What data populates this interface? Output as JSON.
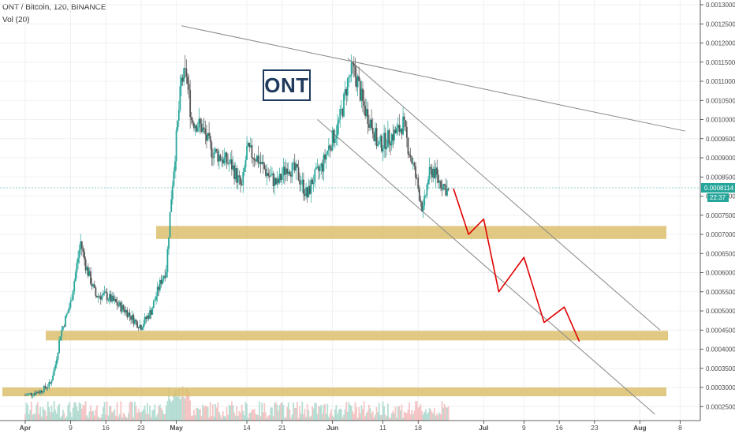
{
  "header": {
    "symbol_line": "ONT / Bitcoin, 120, BINANCE",
    "indicator": "Vol (20)"
  },
  "annotation": {
    "label": "ONT"
  },
  "price_tag": {
    "value": "0.0008114",
    "countdown": "22:37",
    "color": "#26a69a"
  },
  "colors": {
    "up": "#26a69a",
    "down": "#555555",
    "zone": "#dcbf6e",
    "trendline": "#888888",
    "projection": "#e00000",
    "volume": "#cfd8dc"
  },
  "chart_data": {
    "type": "candlestick",
    "title": "ONT / Bitcoin, 120, BINANCE",
    "ylim": [
      0.00023,
      0.0013
    ],
    "yticks": [
      "0.0013000",
      "0.0012500",
      "0.0012000",
      "0.0011500",
      "0.0011000",
      "0.0010500",
      "0.0010000",
      "0.0009500",
      "0.0009000",
      "0.0008500",
      "0.0008000",
      "0.0007500",
      "0.0007000",
      "0.0006500",
      "0.0006000",
      "0.0005500",
      "0.0005000",
      "0.0004500",
      "0.0004000",
      "0.0003500",
      "0.0003000",
      "0.0002500"
    ],
    "xticks": [
      "Apr",
      "9",
      "16",
      "23",
      "May",
      "14",
      "21",
      "Jun",
      "11",
      "18",
      "Jul",
      "9",
      "16",
      "23",
      "Aug",
      "8"
    ],
    "xtick_days": [
      0,
      9,
      16,
      23,
      30,
      44,
      51,
      61,
      71,
      78,
      91,
      99,
      106,
      113,
      122,
      130
    ],
    "price_path_day_value": [
      [
        0,
        0.00028
      ],
      [
        3,
        0.00029
      ],
      [
        5,
        0.00031
      ],
      [
        6,
        0.00036
      ],
      [
        7,
        0.00044
      ],
      [
        8,
        0.00048
      ],
      [
        9,
        0.00052
      ],
      [
        10,
        0.0006
      ],
      [
        11,
        0.00068
      ],
      [
        12,
        0.00062
      ],
      [
        13,
        0.00058
      ],
      [
        14,
        0.00054
      ],
      [
        16,
        0.00054
      ],
      [
        18,
        0.00052
      ],
      [
        20,
        0.0005
      ],
      [
        22,
        0.00047
      ],
      [
        23,
        0.00046
      ],
      [
        25,
        0.0005
      ],
      [
        26,
        0.00054
      ],
      [
        27,
        0.00058
      ],
      [
        28,
        0.00061
      ],
      [
        29,
        0.0008
      ],
      [
        30,
        0.00095
      ],
      [
        31,
        0.0011
      ],
      [
        32,
        0.00112
      ],
      [
        33,
        0.001
      ],
      [
        35,
        0.00098
      ],
      [
        37,
        0.00092
      ],
      [
        39,
        0.0009
      ],
      [
        41,
        0.00088
      ],
      [
        42,
        0.00085
      ],
      [
        43,
        0.00082
      ],
      [
        44,
        0.00092
      ],
      [
        46,
        0.0009
      ],
      [
        48,
        0.00086
      ],
      [
        50,
        0.00083
      ],
      [
        52,
        0.00088
      ],
      [
        54,
        0.00086
      ],
      [
        56,
        0.0008
      ],
      [
        57,
        0.00084
      ],
      [
        59,
        0.00088
      ],
      [
        60,
        0.00092
      ],
      [
        62,
        0.00098
      ],
      [
        63,
        0.00103
      ],
      [
        64,
        0.0011
      ],
      [
        65,
        0.00113
      ],
      [
        66,
        0.0011
      ],
      [
        67,
        0.00104
      ],
      [
        69,
        0.00098
      ],
      [
        70,
        0.00093
      ],
      [
        72,
        0.00095
      ],
      [
        74,
        0.00097
      ],
      [
        75,
        0.00099
      ],
      [
        76,
        0.00093
      ],
      [
        77,
        0.00088
      ],
      [
        78,
        0.00082
      ],
      [
        79,
        0.00076
      ],
      [
        80,
        0.00085
      ],
      [
        81,
        0.00087
      ],
      [
        82,
        0.00084
      ],
      [
        83,
        0.00083
      ],
      [
        84,
        0.00081
      ]
    ],
    "projection_day_value": [
      [
        85,
        0.00082
      ],
      [
        88,
        0.0007
      ],
      [
        91,
        0.00074
      ],
      [
        94,
        0.00055
      ],
      [
        99,
        0.00064
      ],
      [
        103,
        0.00047
      ],
      [
        107,
        0.00051
      ],
      [
        110,
        0.00042
      ]
    ],
    "zones": [
      {
        "from": 0.000688,
        "to": 0.000722
      },
      {
        "from": 0.000423,
        "to": 0.000448
      },
      {
        "from": 0.000277,
        "to": 0.0003
      }
    ],
    "trendlines": [
      {
        "from": [
          31,
          0.001245
        ],
        "to": [
          131,
          0.00097
        ]
      },
      {
        "from": [
          64,
          0.00116
        ],
        "to": [
          126,
          0.00045
        ]
      },
      {
        "from": [
          58,
          0.001
        ],
        "to": [
          125,
          0.00023
        ]
      }
    ]
  }
}
